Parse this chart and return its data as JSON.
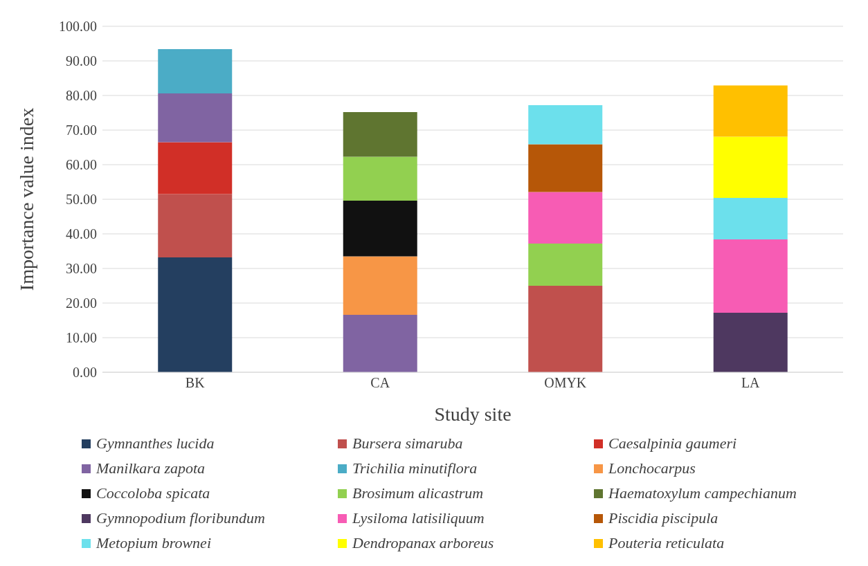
{
  "chart_data": {
    "type": "bar",
    "stacked": true,
    "xlabel": "Study site",
    "ylabel": "Importance value index",
    "categories": [
      "BK",
      "CA",
      "OMYK",
      "LA"
    ],
    "ylim": [
      0,
      100
    ],
    "yticks": [
      {
        "value": 0,
        "label": "0.00"
      },
      {
        "value": 10,
        "label": "10.00"
      },
      {
        "value": 20,
        "label": "20.00"
      },
      {
        "value": 30,
        "label": "30.00"
      },
      {
        "value": 40,
        "label": "40.00"
      },
      {
        "value": 50,
        "label": "50.00"
      },
      {
        "value": 60,
        "label": "60.00"
      },
      {
        "value": 70,
        "label": "70.00"
      },
      {
        "value": 80,
        "label": "80.00"
      },
      {
        "value": 90,
        "label": "90.00"
      },
      {
        "value": 100,
        "label": "100.00"
      }
    ],
    "grid": "y",
    "legend": "bottom",
    "series": [
      {
        "name": "Gymnanthes lucida",
        "color": "#243f60",
        "values": [
          33.2,
          null,
          null,
          null
        ]
      },
      {
        "name": "Bursera simaruba",
        "color": "#c0504d",
        "values": [
          18.3,
          null,
          25.0,
          null
        ]
      },
      {
        "name": "Caesalpinia gaumeri",
        "color": "#d12f27",
        "values": [
          15.0,
          null,
          null,
          null
        ]
      },
      {
        "name": "Manilkara zapota",
        "color": "#8064a2",
        "values": [
          14.1,
          16.6,
          null,
          null
        ]
      },
      {
        "name": "Trichilia minutiflora",
        "color": "#4bacc6",
        "values": [
          12.8,
          null,
          null,
          null
        ]
      },
      {
        "name": "Lonchocarpus",
        "color": "#f79646",
        "values": [
          null,
          16.9,
          null,
          null
        ]
      },
      {
        "name": "Coccoloba spicata",
        "color": "#111111",
        "values": [
          null,
          16.1,
          null,
          null
        ]
      },
      {
        "name": "Brosimum alicastrum",
        "color": "#92d050",
        "values": [
          null,
          12.7,
          12.2,
          null
        ]
      },
      {
        "name": "Haematoxylum campechianum",
        "color": "#5f7530",
        "values": [
          null,
          12.9,
          null,
          null
        ]
      },
      {
        "name": "Gymnopodium floribundum",
        "color": "#4e3860",
        "values": [
          null,
          null,
          null,
          17.2
        ]
      },
      {
        "name": "Lysiloma latisiliquum",
        "color": "#f75cb4",
        "values": [
          null,
          null,
          14.9,
          21.2
        ]
      },
      {
        "name": "Piscidia piscipula",
        "color": "#b65708",
        "values": [
          null,
          null,
          13.8,
          null
        ]
      },
      {
        "name": "Metopium brownei",
        "color": "#6ce0ec",
        "values": [
          null,
          null,
          11.3,
          12.0
        ]
      },
      {
        "name": "Dendropanax arboreus",
        "color": "#ffff00",
        "values": [
          null,
          null,
          null,
          17.7
        ]
      },
      {
        "name": "Pouteria reticulata",
        "color": "#ffc000",
        "values": [
          null,
          null,
          null,
          14.8
        ]
      }
    ]
  }
}
